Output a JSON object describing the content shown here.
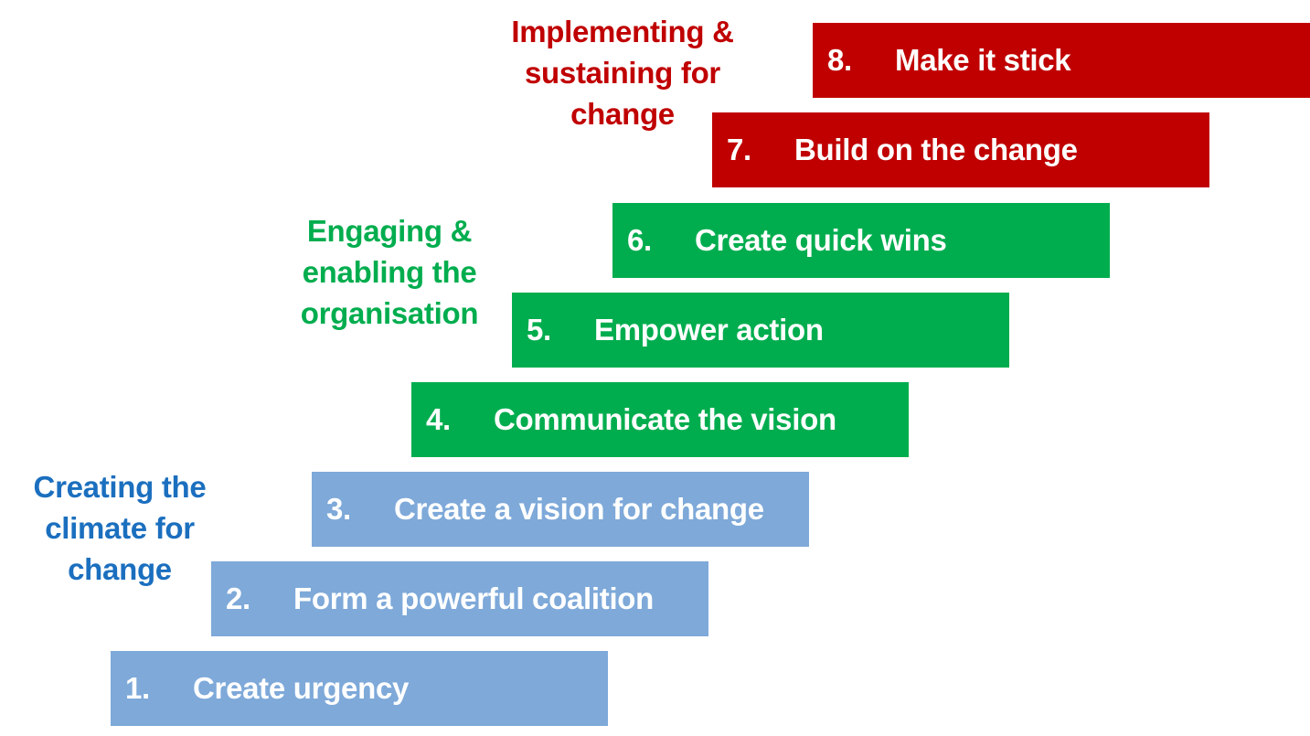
{
  "phases": {
    "climate": {
      "lines": [
        "Creating the",
        "climate for",
        "change"
      ],
      "color": "#1b6fbf"
    },
    "engage": {
      "lines": [
        "Engaging &",
        "enabling the",
        "organisation"
      ],
      "color": "#00ad4e"
    },
    "implement": {
      "lines": [
        "Implementing &",
        "sustaining for",
        "change"
      ],
      "color": "#c00000"
    }
  },
  "steps": [
    {
      "num": "1.",
      "label": "Create urgency",
      "phase": "climate",
      "color": "#7ea9d9"
    },
    {
      "num": "2.",
      "label": "Form a powerful coalition",
      "phase": "climate",
      "color": "#7ea9d9"
    },
    {
      "num": "3.",
      "label": "Create a vision for change",
      "phase": "climate",
      "color": "#7ea9d9"
    },
    {
      "num": "4.",
      "label": "Communicate the vision",
      "phase": "engage",
      "color": "#00ad4e"
    },
    {
      "num": "5.",
      "label": "Empower action",
      "phase": "engage",
      "color": "#00ad4e"
    },
    {
      "num": "6.",
      "label": "Create quick wins",
      "phase": "engage",
      "color": "#00ad4e"
    },
    {
      "num": "7.",
      "label": "Build on the change",
      "phase": "implement",
      "color": "#c00000"
    },
    {
      "num": "8.",
      "label": "Make it stick",
      "phase": "implement",
      "color": "#c00000"
    }
  ]
}
